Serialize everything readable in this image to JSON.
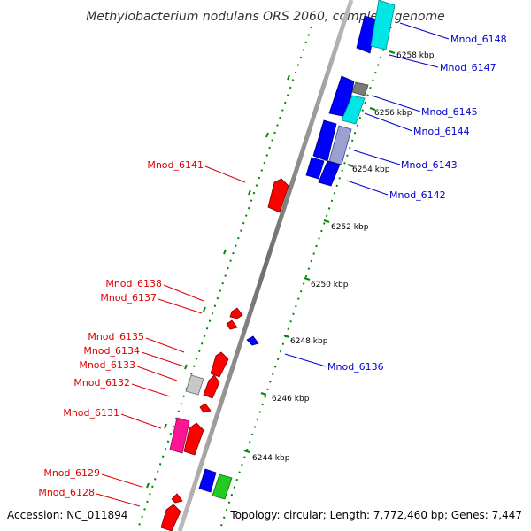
{
  "title": "Methylobacterium nodulans ORS 2060, complete genome",
  "footer": {
    "accession": "Accession: NC_011894",
    "topology": "Topology: circular; Length: 7,772,460 bp; Genes: 7,447"
  },
  "colors": {
    "forward": "#ff0000",
    "reverse": "#0000ff",
    "cyan": "#00e5e5",
    "gray": "#9a9a9a",
    "magenta": "#ff1493",
    "green": "#22cc22",
    "tick": "#008800",
    "backbone": "#888888"
  },
  "ticks": [
    {
      "label": "6258 kbp"
    },
    {
      "label": "6256 kbp"
    },
    {
      "label": "6254 kbp"
    },
    {
      "label": "6252 kbp"
    },
    {
      "label": "6250 kbp"
    },
    {
      "label": "6248 kbp"
    },
    {
      "label": "6246 kbp"
    },
    {
      "label": "6244 kbp"
    }
  ],
  "genes_right": [
    {
      "label": "Mnod_6148"
    },
    {
      "label": "Mnod_6147"
    },
    {
      "label": "Mnod_6145"
    },
    {
      "label": "Mnod_6144"
    },
    {
      "label": "Mnod_6143"
    },
    {
      "label": "Mnod_6142"
    },
    {
      "label": "Mnod_6136"
    }
  ],
  "genes_left": [
    {
      "label": "Mnod_6141"
    },
    {
      "label": "Mnod_6138"
    },
    {
      "label": "Mnod_6137"
    },
    {
      "label": "Mnod_6135"
    },
    {
      "label": "Mnod_6134"
    },
    {
      "label": "Mnod_6133"
    },
    {
      "label": "Mnod_6132"
    },
    {
      "label": "Mnod_6131"
    },
    {
      "label": "Mnod_6129"
    },
    {
      "label": "Mnod_6128"
    }
  ]
}
